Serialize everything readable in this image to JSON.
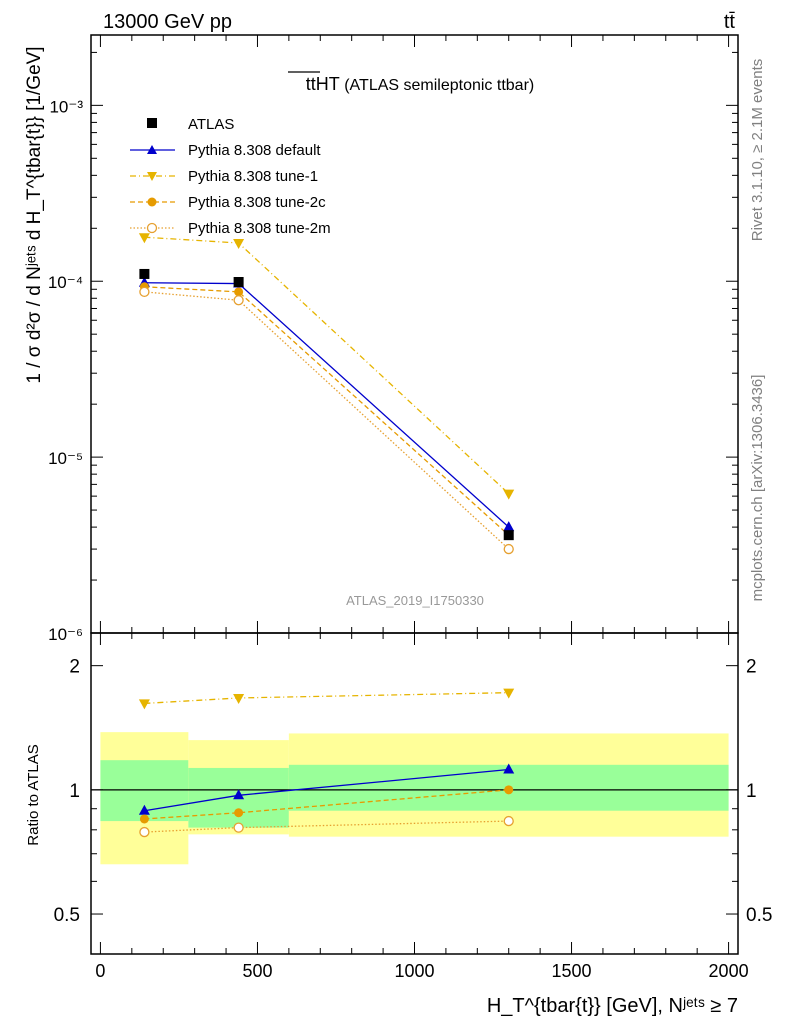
{
  "header": {
    "left": "13000 GeV pp",
    "right": "tt̄"
  },
  "side_text": {
    "rivet": "Rivet 3.1.10, ≥ 2.1M events",
    "mcplots": "mcplots.cern.ch [arXiv:1306.3436]"
  },
  "main_plot": {
    "title_main": "ttHT",
    "title_sub": " (ATLAS semileptonic ttbar)",
    "analysis_id": "ATLAS_2019_I1750330",
    "ylabel": "1 / σ d²σ / d Nʲᵉᵗˢ d H_T^{tbar{t}} [1/GeV]",
    "ytick_labels": [
      "10⁻⁶",
      "10⁻⁵",
      "10⁻⁴",
      "10⁻³"
    ]
  },
  "ratio_plot": {
    "ylabel": "Ratio to ATLAS",
    "ytick_labels": [
      "0.5",
      "1",
      "2"
    ]
  },
  "xaxis": {
    "label": "H_T^{tbar{t}} [GeV], Nʲᵉᵗˢ ≥ 7",
    "tick_labels": [
      "0",
      "500",
      "1000",
      "1500",
      "2000"
    ]
  },
  "legend": {
    "atlas": "ATLAS",
    "default": "Pythia 8.308 default",
    "tune1": "Pythia 8.308 tune-1",
    "tune2c": "Pythia 8.308 tune-2c",
    "tune2m": "Pythia 8.308 tune-2m"
  },
  "colors": {
    "data": "#000000",
    "default": "#0000cc",
    "tune1": "#e6b400",
    "tune2c": "#e69b00",
    "tune2m": "#e6a030",
    "band_inner": "#99ff99",
    "band_outer": "#ffff99"
  },
  "chart_data": {
    "type": "scatter",
    "xlim": [
      -30,
      2030
    ],
    "ylim_main_log10": [
      -6,
      -2.6
    ],
    "ylim_ratio": [
      0.4,
      2.4
    ],
    "bins": [
      [
        0,
        280
      ],
      [
        280,
        600
      ],
      [
        600,
        2000
      ]
    ],
    "data": {
      "name": "ATLAS",
      "x": [
        140,
        440,
        1300
      ],
      "y": [
        0.00011,
        9.9e-05,
        3.6e-06
      ]
    },
    "series": [
      {
        "name": "Pythia 8.308 default",
        "key": "default",
        "marker": "triangle-up",
        "x": [
          140,
          440,
          1300
        ],
        "y": [
          9.8e-05,
          9.7e-05,
          4e-06
        ],
        "ratio": [
          0.89,
          0.97,
          1.12
        ]
      },
      {
        "name": "Pythia 8.308 tune-1",
        "key": "tune1",
        "marker": "triangle-down",
        "x": [
          140,
          440,
          1300
        ],
        "y": [
          0.000178,
          0.000165,
          6.2e-06
        ],
        "ratio": [
          1.62,
          1.67,
          1.72
        ]
      },
      {
        "name": "Pythia 8.308 tune-2c",
        "key": "tune2c",
        "marker": "circle-filled",
        "x": [
          140,
          440,
          1300
        ],
        "y": [
          9.3e-05,
          8.7e-05,
          3.6e-06
        ],
        "ratio": [
          0.85,
          0.88,
          1.0
        ]
      },
      {
        "name": "Pythia 8.308 tune-2m",
        "key": "tune2m",
        "marker": "circle-open",
        "x": [
          140,
          440,
          1300
        ],
        "y": [
          8.7e-05,
          7.8e-05,
          3e-06
        ],
        "ratio": [
          0.79,
          0.81,
          0.84
        ]
      }
    ],
    "ratio_band_inner": [
      [
        0.84,
        1.18
      ],
      [
        0.81,
        1.13
      ],
      [
        0.89,
        1.15
      ]
    ],
    "ratio_band_outer": [
      [
        0.66,
        1.38
      ],
      [
        0.78,
        1.32
      ],
      [
        0.77,
        1.37
      ]
    ]
  }
}
